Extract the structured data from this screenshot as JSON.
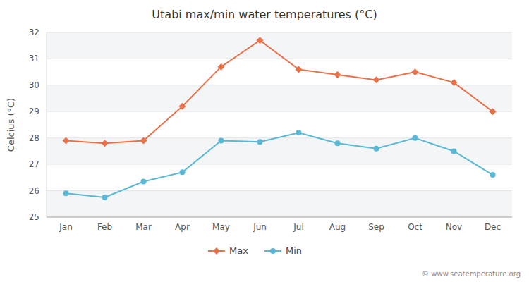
{
  "chart_data": {
    "type": "line",
    "title": "Utabi max/min water temperatures (°C)",
    "y_label": "Celcius (°C)",
    "categories": [
      "Jan",
      "Feb",
      "Mar",
      "Apr",
      "May",
      "Jun",
      "Jul",
      "Aug",
      "Sep",
      "Oct",
      "Nov",
      "Dec"
    ],
    "series": [
      {
        "name": "Max",
        "color": "#E8714A",
        "marker": "diamond",
        "values": [
          27.9,
          27.8,
          27.9,
          29.2,
          30.7,
          31.7,
          30.6,
          30.4,
          30.2,
          30.5,
          30.1,
          29.0
        ]
      },
      {
        "name": "Min",
        "color": "#5BB8D4",
        "marker": "circle",
        "values": [
          25.9,
          25.75,
          26.35,
          26.7,
          27.9,
          27.85,
          28.2,
          27.8,
          27.6,
          28.0,
          27.5,
          26.6
        ]
      }
    ],
    "ylim": [
      25,
      32
    ],
    "yticks": [
      25,
      26,
      27,
      28,
      29,
      30,
      31,
      32
    ],
    "grid": true,
    "legend": "bottom",
    "annotations": [
      "© www.seatemperature.org"
    ]
  }
}
